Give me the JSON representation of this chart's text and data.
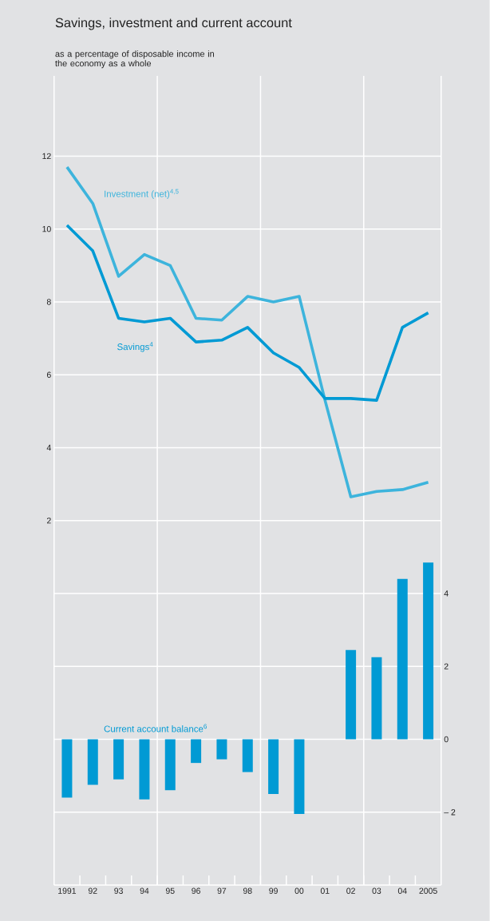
{
  "chart_data": {
    "type": "line",
    "title": "Savings, investment and current account",
    "subtitle": "as a percentage of disposable income in the economy as a whole",
    "categories": [
      "1991",
      "92",
      "93",
      "94",
      "95",
      "96",
      "97",
      "98",
      "99",
      "00",
      "01",
      "02",
      "03",
      "04",
      "2005"
    ],
    "series": [
      {
        "name": "Investment (net)$^{4,5}$",
        "color": "#3db4dc",
        "values": [
          11.7,
          10.7,
          8.7,
          9.3,
          9.0,
          7.55,
          7.5,
          8.15,
          8.0,
          8.15,
          5.3,
          2.65,
          2.8,
          2.85,
          3.05
        ]
      },
      {
        "name": "Savings$^{4}$",
        "color": "#009ad4",
        "values": [
          10.1,
          9.4,
          7.55,
          7.45,
          7.55,
          6.9,
          6.95,
          7.3,
          6.6,
          6.2,
          5.35,
          5.35,
          5.3,
          7.3,
          7.7
        ]
      },
      {
        "name": "Current account balance$^{6}$",
        "type": "bar",
        "axis": "y2",
        "color": "#009ad4",
        "values": [
          -1.6,
          -1.25,
          -1.1,
          -1.65,
          -1.4,
          -0.65,
          -0.55,
          -0.9,
          -1.5,
          -2.05,
          0,
          2.45,
          2.25,
          4.4,
          4.85
        ]
      }
    ],
    "ylim": [
      -8,
      14.2
    ],
    "yticks": [
      2,
      4,
      6,
      8,
      10,
      12
    ],
    "y2lim": [
      -4,
      18.2
    ],
    "y2ticks": [
      {
        "value": -2,
        "label": "– 2"
      },
      0,
      2,
      4
    ],
    "grid": true
  }
}
